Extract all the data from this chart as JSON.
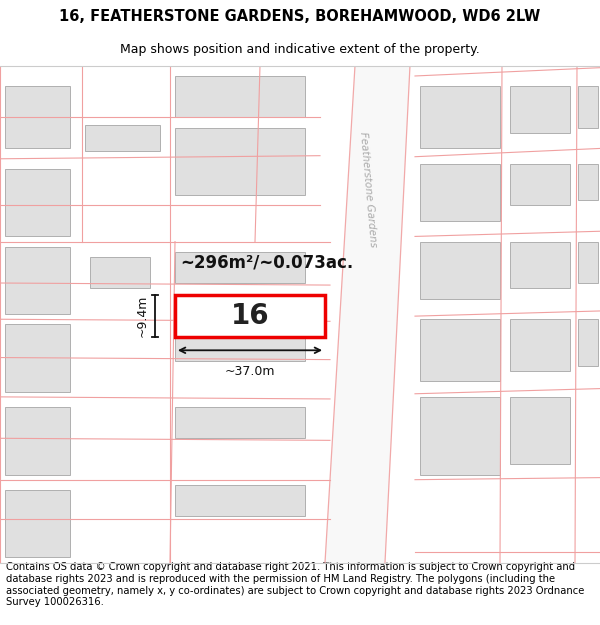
{
  "title_line1": "16, FEATHERSTONE GARDENS, BOREHAMWOOD, WD6 2LW",
  "title_line2": "Map shows position and indicative extent of the property.",
  "footer_text": "Contains OS data © Crown copyright and database right 2021. This information is subject to Crown copyright and database rights 2023 and is reproduced with the permission of HM Land Registry. The polygons (including the associated geometry, namely x, y co-ordinates) are subject to Crown copyright and database rights 2023 Ordnance Survey 100026316.",
  "background_color": "#ffffff",
  "map_background": "#ffffff",
  "plot_fill": "#ffffff",
  "plot_border": "#ee0000",
  "road_color": "#f5f5f5",
  "boundary_color": "#f0a0a0",
  "building_fill": "#e0e0e0",
  "building_border": "#b0b0b0",
  "street_label_color": "#aaaaaa",
  "street_label": "Featherstone Gardens",
  "area_label": "~296m²/~0.073ac.",
  "width_label": "~37.0m",
  "height_label": "~9.4m",
  "plot_number": "16",
  "title_fontsize": 10.5,
  "subtitle_fontsize": 9,
  "footer_fontsize": 7.2
}
